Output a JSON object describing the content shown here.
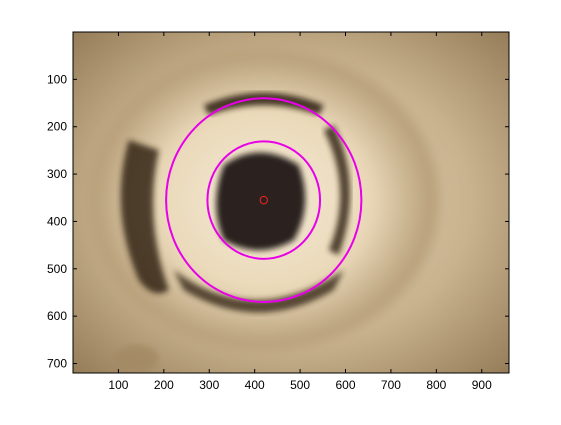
{
  "chart_data": {
    "type": "image",
    "xlim": [
      0,
      960
    ],
    "ylim": [
      0,
      720
    ],
    "y_axis_reversed": true,
    "x_ticks": [
      100,
      200,
      300,
      400,
      500,
      600,
      700,
      800,
      900
    ],
    "y_ticks": [
      100,
      200,
      300,
      400,
      500,
      600,
      700
    ],
    "x_tick_labels": [
      "100",
      "200",
      "300",
      "400",
      "500",
      "600",
      "700",
      "800",
      "900"
    ],
    "y_tick_labels": [
      "100",
      "200",
      "300",
      "400",
      "500",
      "600",
      "700"
    ],
    "grid": false,
    "circles": [
      {
        "cx": 420,
        "cy": 355,
        "r": 215,
        "color": "#e800e8"
      },
      {
        "cx": 420,
        "cy": 355,
        "r": 124,
        "color": "#e800e8"
      },
      {
        "cx": 420,
        "cy": 355,
        "r": 8,
        "color": "#ff2020"
      }
    ],
    "image": {
      "description": "photograph looking down a glossy cylindrical pipe with dark reflections",
      "tone_light": "#ede0c4",
      "tone_mid": "#b79c74",
      "tone_dark": "#1e140c"
    }
  }
}
